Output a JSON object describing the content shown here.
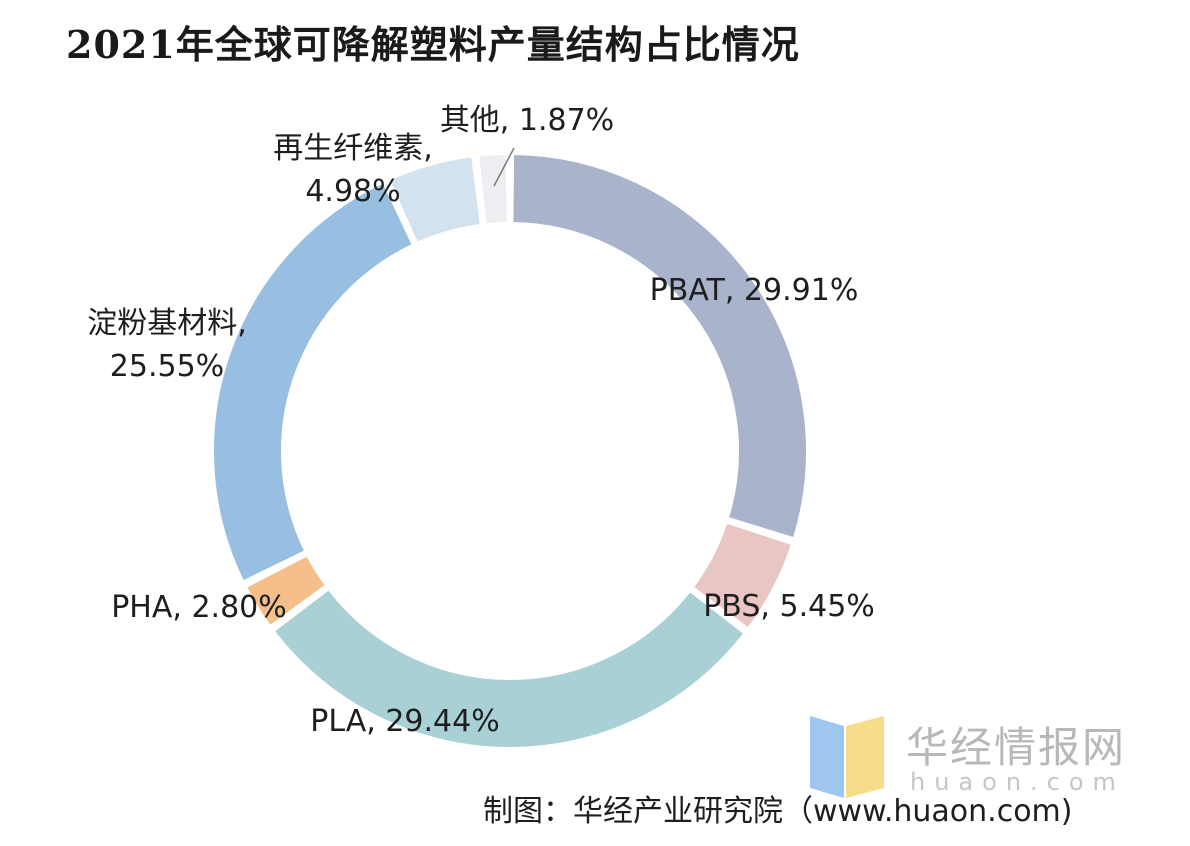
{
  "chart_data": {
    "type": "pie",
    "title": "2021年全球可降解塑料产量结构占比情况",
    "categories": [
      "PBAT",
      "PBS",
      "PLA",
      "PHA",
      "淀粉基材料",
      "再生纤维素",
      "其他"
    ],
    "values": [
      29.91,
      5.45,
      29.44,
      2.8,
      25.55,
      4.98,
      1.87
    ],
    "series": [
      {
        "name": "PBAT",
        "value": 29.91,
        "label": "PBAT, 29.91%",
        "color": "#a9b4cc"
      },
      {
        "name": "PBS",
        "value": 5.45,
        "label": "PBS, 5.45%",
        "color": "#e9c6c3"
      },
      {
        "name": "PLA",
        "value": 29.44,
        "label": "PLA, 29.44%",
        "color": "#a8d0d5"
      },
      {
        "name": "PHA",
        "value": 2.8,
        "label": "PHA, 2.80%",
        "color": "#f5bf8c"
      },
      {
        "name": "淀粉基材料",
        "value": 25.55,
        "label_lines": [
          "淀粉基材料,",
          "25.55%"
        ],
        "color": "#98bfe1"
      },
      {
        "name": "再生纤维素",
        "value": 4.98,
        "label_lines": [
          "再生纤维素,",
          "4.98%"
        ],
        "color": "#d2e2ee"
      },
      {
        "name": "其他",
        "value": 1.87,
        "label": "其他, 1.87%",
        "color": "#eceef1"
      }
    ],
    "donut": true,
    "legend": "none"
  },
  "watermark": {
    "name": "华经情报网",
    "domain": "huaon.com"
  },
  "source": "制图：华经产业研究院（www.huaon.com)"
}
